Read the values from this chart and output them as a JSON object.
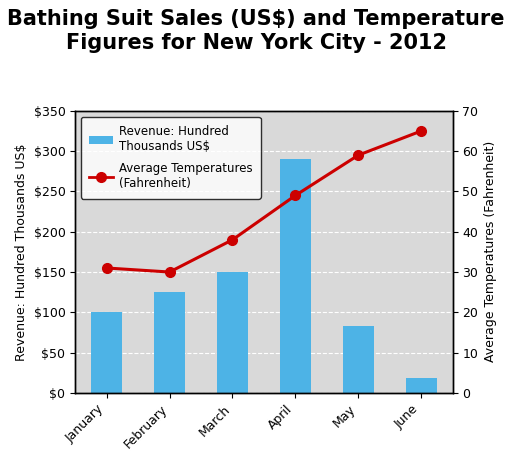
{
  "title": "Bathing Suit Sales (US$) and Temperature\nFigures for New York City - 2012",
  "months": [
    "January",
    "February",
    "March",
    "April",
    "May",
    "June"
  ],
  "revenue": [
    100,
    125,
    150,
    290,
    83,
    18
  ],
  "temperature": [
    31,
    30,
    38,
    49,
    59,
    65
  ],
  "bar_color": "#4db3e6",
  "line_color": "#cc0000",
  "marker_color": "#cc0000",
  "bg_color": "#d9d9d9",
  "ylabel_left": "Revenue: Hundred Thousands US$",
  "ylabel_right": "Average Temperatures (Fahrenheit)",
  "ylim_left": [
    0,
    350
  ],
  "ylim_right": [
    0,
    70
  ],
  "yticks_left": [
    0,
    50,
    100,
    150,
    200,
    250,
    300,
    350
  ],
  "yticks_right": [
    0,
    10,
    20,
    30,
    40,
    50,
    60,
    70
  ],
  "legend_bar_label": "Revenue: Hundred\nThousands US$",
  "legend_line_label": "Average Temperatures\n(Fahrenheit)",
  "title_fontsize": 15,
  "axis_label_fontsize": 9,
  "tick_label_fontsize": 9
}
